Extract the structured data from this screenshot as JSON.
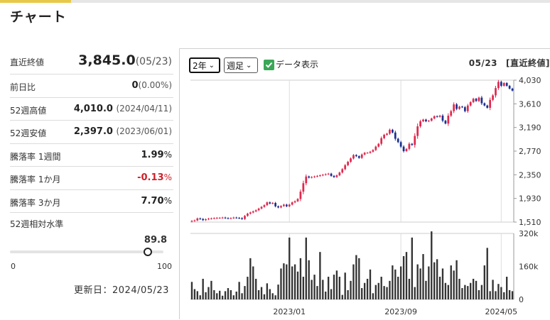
{
  "title": "チャート",
  "stats": [
    {
      "label": "直近終値",
      "value": "3,845.0",
      "sub": "(05/23)"
    },
    {
      "label": "前日比",
      "value": "0",
      "sub": "(0.00%)"
    },
    {
      "label": "52週高値",
      "value": "4,010.0",
      "sub": "(2024/04/11)"
    },
    {
      "label": "52週安値",
      "value": "2,397.0",
      "sub": "(2023/06/01)"
    },
    {
      "label": "騰落率 1週間",
      "value": "1.99",
      "unit": "%"
    },
    {
      "label": "騰落率 1か月",
      "value": "-0.13",
      "unit": "%",
      "negative": true
    },
    {
      "label": "騰落率 3か月",
      "value": "7.70",
      "unit": "%"
    }
  ],
  "relative": {
    "label": "52週相対水準",
    "value": "89.8",
    "min": "0",
    "max": "100",
    "level": 0.898
  },
  "updated": "更新日：2024/05/23",
  "controls": {
    "period": "2年",
    "unit": "週足",
    "show_data": "データ表示",
    "date": "05/23",
    "price_type": "[直近終値]"
  },
  "colors": {
    "up": "#e0284d",
    "down": "#1a2f8f",
    "volume": "#333333",
    "accent": "#e8c84a",
    "check": "#3aa757"
  },
  "chart_data": {
    "type": "candlestick",
    "x_labels": [
      "2023/01",
      "2023/09",
      "2024/05"
    ],
    "price_ticks": [
      "4,030",
      "3,610",
      "3,190",
      "2,770",
      "2,350",
      "1,930",
      "1,510"
    ],
    "price_range": [
      1510,
      4030
    ],
    "volume_ticks": [
      "320k",
      "160k",
      "0"
    ],
    "volume_range": [
      0,
      320000
    ],
    "series": [
      {
        "name": "price",
        "close": [
          1530,
          1540,
          1575,
          1565,
          1545,
          1560,
          1570,
          1575,
          1580,
          1585,
          1585,
          1590,
          1580,
          1575,
          1580,
          1590,
          1585,
          1580,
          1565,
          1620,
          1660,
          1680,
          1700,
          1720,
          1750,
          1780,
          1810,
          1860,
          1840,
          1850,
          1790,
          1770,
          1795,
          1820,
          1790,
          1820,
          1860,
          1880,
          1920,
          2050,
          2200,
          2320,
          2300,
          2310,
          2320,
          2330,
          2340,
          2350,
          2360,
          2370,
          2330,
          2310,
          2340,
          2390,
          2450,
          2520,
          2580,
          2640,
          2700,
          2680,
          2650,
          2710,
          2740,
          2740,
          2760,
          2790,
          2850,
          2900,
          3000,
          3060,
          3080,
          3150,
          3100,
          2990,
          2930,
          2850,
          2770,
          2810,
          2900,
          2880,
          3040,
          3210,
          3300,
          3330,
          3300,
          3310,
          3350,
          3390,
          3380,
          3400,
          3310,
          3260,
          3400,
          3480,
          3600,
          3520,
          3560,
          3550,
          3480,
          3580,
          3640,
          3700,
          3660,
          3720,
          3620,
          3580,
          3540,
          3680,
          3760,
          3890,
          4000,
          3930,
          3980,
          3930,
          3880,
          3845
        ]
      },
      {
        "name": "volume",
        "values": [
          85000,
          50000,
          40000,
          20000,
          100000,
          35000,
          60000,
          90000,
          45000,
          30000,
          42000,
          18000,
          40000,
          55000,
          45000,
          20000,
          38000,
          85000,
          30000,
          65000,
          110000,
          200000,
          160000,
          100000,
          45000,
          60000,
          25000,
          78000,
          50000,
          30000,
          20000,
          72000,
          150000,
          175000,
          170000,
          300000,
          160000,
          170000,
          135000,
          200000,
          110000,
          300000,
          190000,
          95000,
          120000,
          65000,
          230000,
          95000,
          38000,
          110000,
          50000,
          120000,
          140000,
          110000,
          22000,
          130000,
          45000,
          90000,
          170000,
          215000,
          200000,
          55000,
          80000,
          100000,
          145000,
          30000,
          70000,
          80000,
          110000,
          65000,
          60000,
          90000,
          165000,
          145000,
          110000,
          160000,
          210000,
          230000,
          100000,
          300000,
          60000,
          170000,
          150000,
          220000,
          90000,
          160000,
          330000,
          180000,
          195000,
          110000,
          150000,
          80000,
          70000,
          165000,
          140000,
          190000,
          100000,
          55000,
          70000,
          65000,
          80000,
          100000,
          90000,
          45000,
          70000,
          165000,
          250000,
          40000,
          95000,
          40000,
          75000,
          60000,
          35000,
          110000,
          45000,
          40000
        ]
      }
    ]
  }
}
